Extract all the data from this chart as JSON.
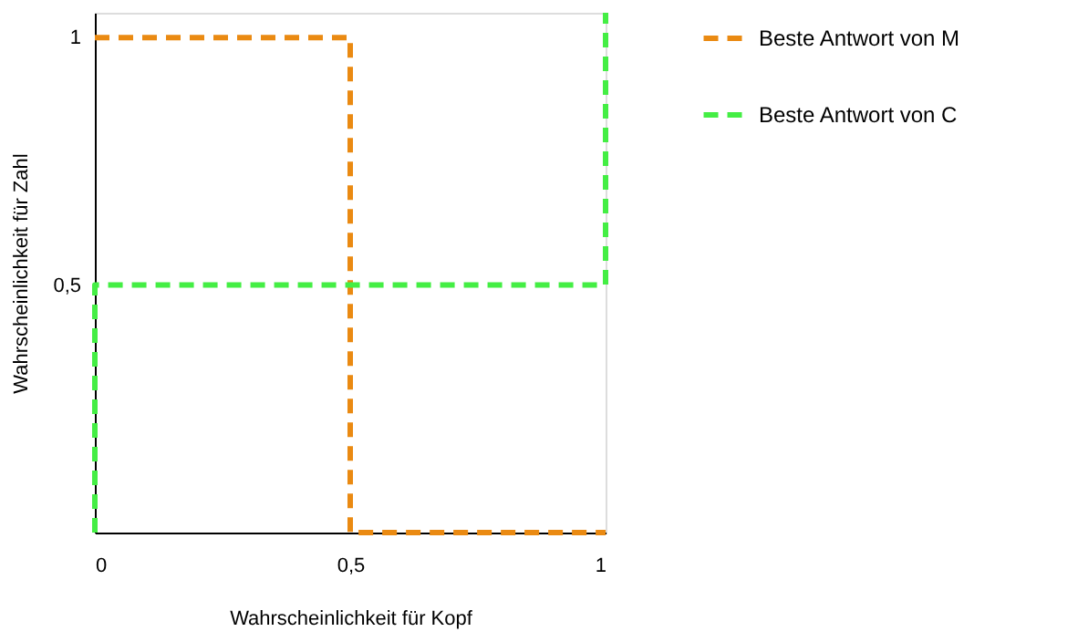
{
  "chart_data": {
    "type": "line",
    "xlabel": "Wahrscheinlichkeit für Kopf",
    "ylabel": "Wahrscheinlichkeit für Zahl",
    "xlim": [
      0,
      1
    ],
    "ylim": [
      0,
      1.05
    ],
    "xticks": [
      {
        "value": 0,
        "label": "0"
      },
      {
        "value": 0.5,
        "label": "0,5"
      },
      {
        "value": 1,
        "label": "1"
      }
    ],
    "yticks": [
      {
        "value": 0.5,
        "label": "0,5"
      },
      {
        "value": 1,
        "label": "1"
      }
    ],
    "series": [
      {
        "name": "Beste Antwort von M",
        "color": "#ea8a12",
        "x": [
          0,
          0.5,
          0.5,
          1
        ],
        "values": [
          1,
          1,
          0,
          0
        ]
      },
      {
        "name": "Beste Antwort von C",
        "color": "#44ee44",
        "x": [
          0,
          0,
          1,
          1
        ],
        "values": [
          0,
          0.5,
          0.5,
          1.05
        ]
      }
    ],
    "grid": false,
    "legend": "right",
    "line_style": "dashed",
    "marker": "none"
  }
}
